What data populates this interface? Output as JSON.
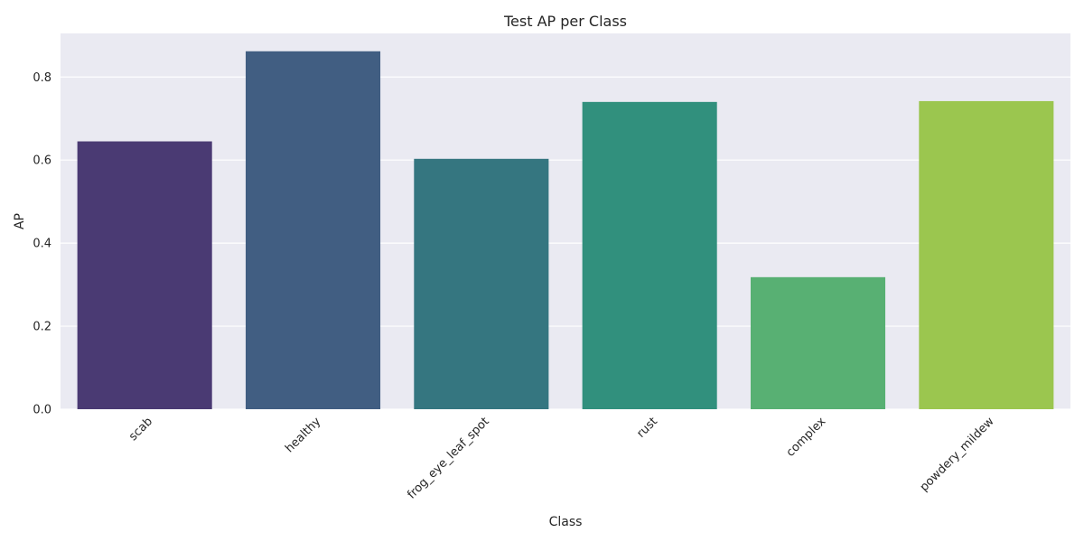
{
  "chart_data": {
    "type": "bar",
    "title": "Test AP per Class",
    "xlabel": "Class",
    "ylabel": "AP",
    "categories": [
      "scab",
      "healthy",
      "frog_eye_leaf_spot",
      "rust",
      "complex",
      "powdery_mildew"
    ],
    "values": [
      0.645,
      0.862,
      0.603,
      0.74,
      0.318,
      0.742
    ],
    "colors": [
      "#4a3a73",
      "#415e82",
      "#357680",
      "#31907d",
      "#58b073",
      "#9bc64f"
    ],
    "ylim": [
      0,
      0.905
    ],
    "yticks": [
      0.0,
      0.2,
      0.4,
      0.6,
      0.8
    ],
    "ytick_labels": [
      "0.0",
      "0.2",
      "0.4",
      "0.6",
      "0.8"
    ],
    "grid": true,
    "background": "#eaeaf2",
    "x_tick_rotation": 45
  }
}
